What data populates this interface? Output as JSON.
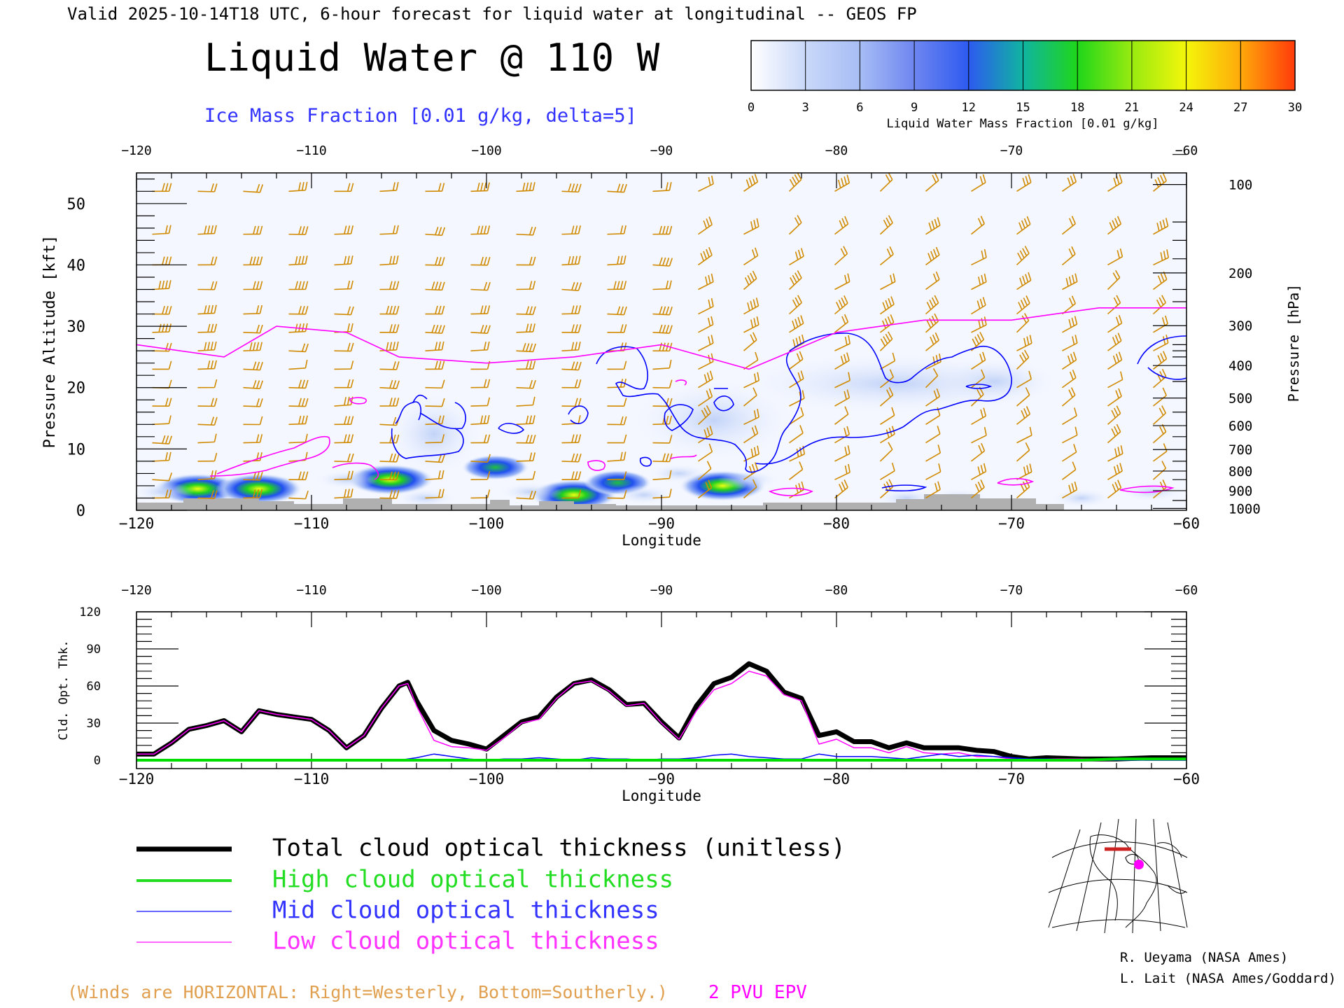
{
  "header": {
    "valid_line": "Valid 2025-10-14T18 UTC, 6-hour forecast for liquid water at longitudinal -- GEOS FP",
    "title": "Liquid Water @ 110 W",
    "ice_label": "Ice Mass Fraction [0.01 g/kg, delta=5]"
  },
  "colorbar": {
    "label": "Liquid Water Mass Fraction [0.01 g/kg]",
    "ticks": [
      "0",
      "3",
      "6",
      "9",
      "12",
      "15",
      "18",
      "21",
      "24",
      "27",
      "30"
    ],
    "colors": [
      "#f4f6ff",
      "#b9cdf7",
      "#9db6f3",
      "#7f98ef",
      "#3f5bf0",
      "#12a0a8",
      "#28d21e",
      "#7ce61a",
      "#eef50a",
      "#ffb70a",
      "#ff5f0a"
    ]
  },
  "chart_data": [
    {
      "type": "heatmap",
      "name": "cross-section",
      "xlabel": "Longitude",
      "ylabel": "Pressure Altitude [kft]",
      "ylabel_right": "Pressure [hPa]",
      "xlim": [
        -120,
        -60
      ],
      "ylim": [
        0,
        55
      ],
      "x_ticks": [
        "−120",
        "−110",
        "−100",
        "−90",
        "−80",
        "−70",
        "−60"
      ],
      "x_tick_values": [
        -120,
        -110,
        -100,
        -90,
        -80,
        -70,
        -60
      ],
      "y_ticks": [
        "0",
        "10",
        "20",
        "30",
        "40",
        "50"
      ],
      "y_tick_values": [
        0,
        10,
        20,
        30,
        40,
        50
      ],
      "pressure_labels": [
        "100",
        "200",
        "300",
        "400",
        "500",
        "600",
        "700",
        "800",
        "900",
        "1000"
      ],
      "pressure_alt_kft": [
        53.1,
        38.7,
        30.1,
        23.6,
        18.3,
        13.8,
        9.9,
        6.4,
        3.2,
        0.3
      ],
      "low_liquid_cores": [
        {
          "lon": -116.5,
          "alt": 3.5,
          "value": 19
        },
        {
          "lon": -113,
          "alt": 3.5,
          "value": 18
        },
        {
          "lon": -105.5,
          "alt": 5,
          "value": 16
        },
        {
          "lon": -99.5,
          "alt": 7,
          "value": 14
        },
        {
          "lon": -95,
          "alt": 2.5,
          "value": 16
        },
        {
          "lon": -86.5,
          "alt": 4,
          "value": 20
        },
        {
          "lon": -92.5,
          "alt": 4.5,
          "value": 14
        }
      ],
      "epv_2pvu_kft": [
        [
          -120,
          27
        ],
        [
          -115,
          25
        ],
        [
          -112,
          30
        ],
        [
          -108,
          29
        ],
        [
          -105,
          25
        ],
        [
          -100,
          24
        ],
        [
          -95,
          25
        ],
        [
          -90,
          27
        ],
        [
          -85,
          23
        ],
        [
          -80,
          29
        ],
        [
          -75,
          31
        ],
        [
          -70,
          31
        ],
        [
          -65,
          33
        ],
        [
          -60,
          33
        ]
      ],
      "colors": {
        "epv": "#ff00ff",
        "ice": "#0000ff",
        "wind": "#d08a00",
        "ground": "#b0b0b0"
      }
    },
    {
      "type": "line",
      "name": "cloud-optical-thickness",
      "xlabel": "Longitude",
      "ylabel": "Cld. Opt. Thk.",
      "xlim": [
        -120,
        -60
      ],
      "ylim": [
        0,
        120
      ],
      "x_ticks": [
        "−120",
        "−110",
        "−100",
        "−90",
        "−80",
        "−70",
        "−60"
      ],
      "x_tick_values": [
        -120,
        -110,
        -100,
        -90,
        -80,
        -70,
        -60
      ],
      "y_ticks": [
        "0",
        "30",
        "60",
        "90",
        "120"
      ],
      "y_tick_values": [
        0,
        30,
        60,
        90,
        120
      ],
      "x": [
        -120,
        -119,
        -118,
        -117,
        -116,
        -115,
        -114,
        -113,
        -112,
        -111,
        -110,
        -109,
        -108,
        -107,
        -106,
        -105,
        -104.5,
        -104,
        -103,
        -102,
        -101,
        -100,
        -99,
        -98,
        -97,
        -96,
        -95,
        -94,
        -93,
        -92,
        -91,
        -90,
        -89,
        -88,
        -87,
        -86,
        -85,
        -84,
        -83,
        -82,
        -81,
        -80,
        -79,
        -78,
        -77,
        -76,
        -75,
        -74,
        -73,
        -72,
        -71,
        -70,
        -69,
        -68,
        -66,
        -64,
        -62,
        -60
      ],
      "series": [
        {
          "name": "Total cloud optical thickness (unitless)",
          "color": "#000000",
          "width": 7,
          "values": [
            5,
            5,
            14,
            25,
            28,
            32,
            23,
            40,
            37,
            35,
            33,
            24,
            10,
            20,
            42,
            60,
            63,
            48,
            24,
            16,
            13,
            9,
            20,
            31,
            35,
            51,
            62,
            65,
            57,
            45,
            46,
            31,
            18,
            44,
            62,
            67,
            78,
            72,
            55,
            50,
            20,
            23,
            15,
            15,
            10,
            14,
            10,
            10,
            10,
            8,
            7,
            3,
            1,
            2,
            1,
            1,
            2,
            2
          ]
        },
        {
          "name": "High cloud optical thickness",
          "color": "#00dd00",
          "width": 4,
          "values": [
            0,
            0,
            0,
            0,
            0,
            0,
            0,
            0,
            0,
            0,
            0,
            0,
            0,
            0,
            0,
            0,
            0,
            0,
            0,
            0,
            0,
            0,
            0,
            0,
            0,
            0,
            0,
            0,
            0,
            0,
            0,
            0,
            0,
            0,
            0,
            0,
            0,
            0,
            0,
            0,
            0,
            0,
            0,
            0,
            0,
            0,
            0,
            0,
            0,
            0,
            0,
            0,
            0,
            0,
            0,
            1,
            1,
            1
          ]
        },
        {
          "name": "Mid cloud optical thickness",
          "color": "#0000ff",
          "width": 1.5,
          "values": [
            0,
            0,
            0,
            0,
            0,
            0,
            0,
            0,
            0,
            0,
            0,
            0,
            0,
            0,
            0,
            0,
            1,
            2,
            5,
            3,
            1,
            0,
            1,
            1,
            2,
            1,
            0,
            2,
            1,
            1,
            0,
            1,
            1,
            2,
            4,
            5,
            3,
            2,
            1,
            1,
            5,
            3,
            3,
            3,
            2,
            1,
            3,
            5,
            3,
            4,
            3,
            2,
            1,
            1,
            0,
            0,
            0,
            0
          ]
        },
        {
          "name": "Low cloud optical thickness",
          "color": "#ff00ff",
          "width": 1.5,
          "values": [
            5,
            5,
            14,
            25,
            28,
            32,
            23,
            40,
            37,
            35,
            33,
            24,
            10,
            20,
            42,
            60,
            62,
            44,
            16,
            11,
            10,
            8,
            18,
            30,
            33,
            50,
            62,
            64,
            56,
            44,
            46,
            30,
            17,
            40,
            57,
            62,
            72,
            68,
            53,
            48,
            13,
            17,
            10,
            10,
            6,
            11,
            6,
            5,
            6,
            3,
            3,
            1,
            0,
            1,
            1,
            1,
            1,
            1
          ]
        }
      ]
    }
  ],
  "legend": {
    "items": [
      {
        "label": "Total cloud optical thickness (unitless)",
        "color": "#000000",
        "width": 7
      },
      {
        "label": "High cloud optical thickness",
        "color": "#22dd22",
        "width": 4
      },
      {
        "label": "Mid cloud optical thickness",
        "color": "#3333ff",
        "width": 1.5
      },
      {
        "label": "Low cloud optical thickness",
        "color": "#ff33ff",
        "width": 1.5
      }
    ]
  },
  "footer": {
    "winds_note": "(Winds are HORIZONTAL: Right=Westerly, Bottom=Southerly.)",
    "epv_label": "2 PVU EPV",
    "credit_1": "R. Ueyama (NASA Ames)",
    "credit_2": "L. Lait (NASA Ames/Goddard)"
  }
}
